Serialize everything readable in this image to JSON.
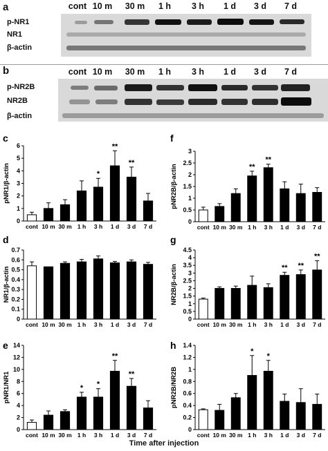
{
  "blots": {
    "a": {
      "letter": "a",
      "lanes": [
        "cont",
        "10 m",
        "30 m",
        "1 h",
        "3 h",
        "1 d",
        "3 d",
        "7 d"
      ],
      "rows": [
        "p-NR1",
        "NR1",
        "β-actin"
      ]
    },
    "b": {
      "letter": "b",
      "lanes": [
        "cont",
        "10 m",
        "30 m",
        "1 h",
        "3 h",
        "1 d",
        "3 d",
        "7 d"
      ],
      "rows": [
        "p-NR2B",
        "NR2B",
        "β-actin"
      ]
    }
  },
  "x_caption": "Time after injection",
  "chart_data": [
    {
      "panel": "c",
      "type": "bar",
      "ylabel": "pNR1/β-actin",
      "categories": [
        "cont",
        "10 m",
        "30 m",
        "1 h",
        "3 h",
        "1 d",
        "3 d",
        "7 d"
      ],
      "values": [
        0.5,
        1.0,
        1.3,
        2.4,
        2.7,
        4.4,
        3.5,
        1.6
      ],
      "errors": [
        0.2,
        0.45,
        0.4,
        0.8,
        0.7,
        1.2,
        0.8,
        0.6
      ],
      "significance": [
        "",
        "",
        "",
        "",
        "*",
        "**",
        "**",
        ""
      ],
      "ylim": [
        0,
        6
      ],
      "yticks": [
        "0",
        "1",
        "2",
        "3",
        "4",
        "5",
        "6"
      ]
    },
    {
      "panel": "f",
      "type": "bar",
      "ylabel": "pNR2B/β-actin",
      "categories": [
        "cont",
        "10 m",
        "30 m",
        "1 h",
        "3 h",
        "1 d",
        "3 d",
        "7 d"
      ],
      "values": [
        0.5,
        0.65,
        1.2,
        1.95,
        2.3,
        1.4,
        1.2,
        1.25
      ],
      "errors": [
        0.12,
        0.12,
        0.2,
        0.2,
        0.15,
        0.3,
        0.4,
        0.2
      ],
      "significance": [
        "",
        "",
        "",
        "**",
        "**",
        "",
        "",
        ""
      ],
      "ylim": [
        0,
        3
      ],
      "yticks": [
        "0",
        "0.5",
        "1",
        "1.5",
        "2",
        "2.5",
        "3"
      ]
    },
    {
      "panel": "d",
      "type": "bar",
      "ylabel": "NR1/β-actin",
      "categories": [
        "cont",
        "10 m",
        "30 m",
        "1 h",
        "3 h",
        "1 d",
        "3 d",
        "7 d"
      ],
      "values": [
        0.54,
        0.53,
        0.565,
        0.58,
        0.61,
        0.57,
        0.58,
        0.555
      ],
      "errors": [
        0.04,
        0.0,
        0.015,
        0.025,
        0.03,
        0.015,
        0.02,
        0.02
      ],
      "significance": [
        "",
        "",
        "",
        "",
        "",
        "",
        "",
        ""
      ],
      "ylim": [
        0,
        0.7
      ],
      "yticks": [
        "0",
        "0.1",
        "0.2",
        "0.3",
        "0.4",
        "0.5",
        "0.6",
        "0.7"
      ]
    },
    {
      "panel": "g",
      "type": "bar",
      "ylabel": "NR2B/β-actin",
      "categories": [
        "cont",
        "10 m",
        "30 m",
        "1 h",
        "3 h",
        "1 d",
        "3 d",
        "7 d"
      ],
      "values": [
        1.3,
        2.0,
        2.0,
        2.2,
        2.05,
        2.85,
        2.9,
        3.2
      ],
      "errors": [
        0.07,
        0.1,
        0.15,
        0.6,
        0.25,
        0.2,
        0.3,
        0.6
      ],
      "significance": [
        "",
        "",
        "",
        "",
        "",
        "**",
        "**",
        "**"
      ],
      "ylim": [
        0,
        4.5
      ],
      "yticks": [
        "0",
        "0.5",
        "1",
        "1.5",
        "2",
        "2.5",
        "3",
        "3.5",
        "4",
        "4.5"
      ]
    },
    {
      "panel": "e",
      "type": "bar",
      "ylabel": "pNR1/NR1",
      "categories": [
        "cont",
        "10 m",
        "30 m",
        "1 h",
        "3 h",
        "1 d",
        "3 d",
        "7 d"
      ],
      "values": [
        1.2,
        2.4,
        3.0,
        5.4,
        5.4,
        9.7,
        7.2,
        3.6
      ],
      "errors": [
        0.4,
        0.7,
        0.3,
        0.8,
        1.4,
        1.8,
        1.3,
        1.2
      ],
      "significance": [
        "",
        "",
        "",
        "*",
        "*",
        "**",
        "**",
        ""
      ],
      "ylim": [
        0,
        14
      ],
      "yticks": [
        "0",
        "2",
        "4",
        "6",
        "8",
        "10",
        "12",
        "14"
      ]
    },
    {
      "panel": "h",
      "type": "bar",
      "ylabel": "pNR2B/NR2B",
      "categories": [
        "cont",
        "10 m",
        "30 m",
        "1 h",
        "3 h",
        "1 d",
        "3 d",
        "7 d"
      ],
      "values": [
        0.33,
        0.32,
        0.53,
        0.9,
        0.97,
        0.47,
        0.45,
        0.42
      ],
      "errors": [
        0.015,
        0.1,
        0.07,
        0.33,
        0.18,
        0.12,
        0.23,
        0.17
      ],
      "significance": [
        "",
        "",
        "",
        "*",
        "*",
        "",
        "",
        ""
      ],
      "ylim": [
        0,
        1.4
      ],
      "yticks": [
        "0",
        "0.2",
        "0.4",
        "0.6",
        "0.8",
        "1",
        "1.2",
        "1.4"
      ]
    }
  ]
}
